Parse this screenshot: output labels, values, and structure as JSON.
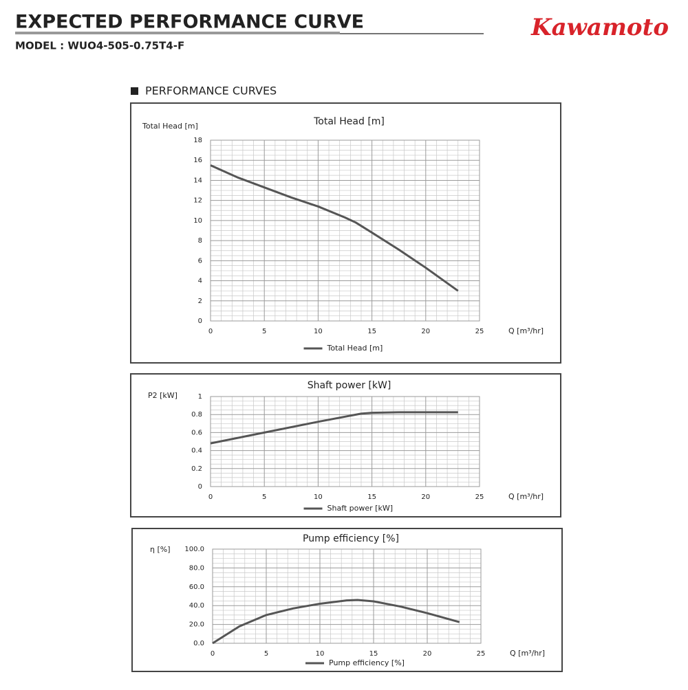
{
  "header": {
    "title": "EXPECTED PERFORMANCE CURVE",
    "model": "MODEL : WUO4-505-0.75T4-F",
    "brand": "Kawamoto"
  },
  "section": "PERFORMANCE CURVES",
  "chart_data": [
    {
      "type": "line",
      "title": "Total Head [m]",
      "y_label": "Total Head [m]",
      "x_label": "Q [m³/hr]",
      "x": [
        0,
        2.5,
        5,
        7.5,
        10,
        12.5,
        13.5,
        15,
        17.5,
        20,
        23
      ],
      "series": [
        {
          "name": "Total Head [m]",
          "color": "#555555",
          "values": [
            15.5,
            14.3,
            13.3,
            12.3,
            11.4,
            10.3,
            9.8,
            8.8,
            7.1,
            5.3,
            3.0
          ]
        }
      ],
      "xlim": [
        0,
        25
      ],
      "xticks": [
        0,
        5,
        10,
        15,
        20,
        25
      ],
      "ylim": [
        0,
        18
      ],
      "yticks": [
        0,
        2,
        4,
        6,
        8,
        10,
        12,
        14,
        16,
        18
      ],
      "grid": true,
      "legend": "bottom"
    },
    {
      "type": "line",
      "title": "Shaft power [kW]",
      "y_label": "P2 [kW]",
      "x_label": "Q [m³/hr]",
      "x": [
        0,
        5,
        10,
        14,
        15,
        17.5,
        20,
        23
      ],
      "series": [
        {
          "name": "Shaft power [kW]",
          "color": "#555555",
          "values": [
            0.48,
            0.6,
            0.72,
            0.81,
            0.82,
            0.825,
            0.825,
            0.825
          ]
        }
      ],
      "xlim": [
        0,
        25
      ],
      "xticks": [
        0,
        5,
        10,
        15,
        20,
        25
      ],
      "ylim": [
        0,
        1
      ],
      "yticks": [
        0,
        0.2,
        0.4,
        0.6,
        0.8,
        1
      ],
      "grid": true,
      "legend": "bottom"
    },
    {
      "type": "line",
      "title": "Pump efficiency [%]",
      "y_label": "η [%]",
      "x_label": "Q [m³/hr]",
      "x": [
        0,
        2.5,
        5,
        7.5,
        10,
        12.5,
        13.5,
        15,
        17.5,
        20,
        23
      ],
      "series": [
        {
          "name": "Pump efficiency [%]",
          "color": "#555555",
          "values": [
            0,
            18,
            30,
            37,
            42,
            45.5,
            46,
            44.5,
            39,
            32,
            22.5
          ]
        }
      ],
      "xlim": [
        0,
        25
      ],
      "xticks": [
        0,
        5,
        10,
        15,
        20,
        25
      ],
      "ylim": [
        0,
        100
      ],
      "yticks": [
        {
          "value": 0,
          "label": "0.0"
        },
        {
          "value": 20,
          "label": "20.0"
        },
        {
          "value": 40,
          "label": "40.0"
        },
        {
          "value": 60,
          "label": "60.0"
        },
        {
          "value": 80,
          "label": "80.0"
        },
        {
          "value": 100,
          "label": "100.0"
        }
      ],
      "grid": true,
      "legend": "bottom"
    }
  ]
}
